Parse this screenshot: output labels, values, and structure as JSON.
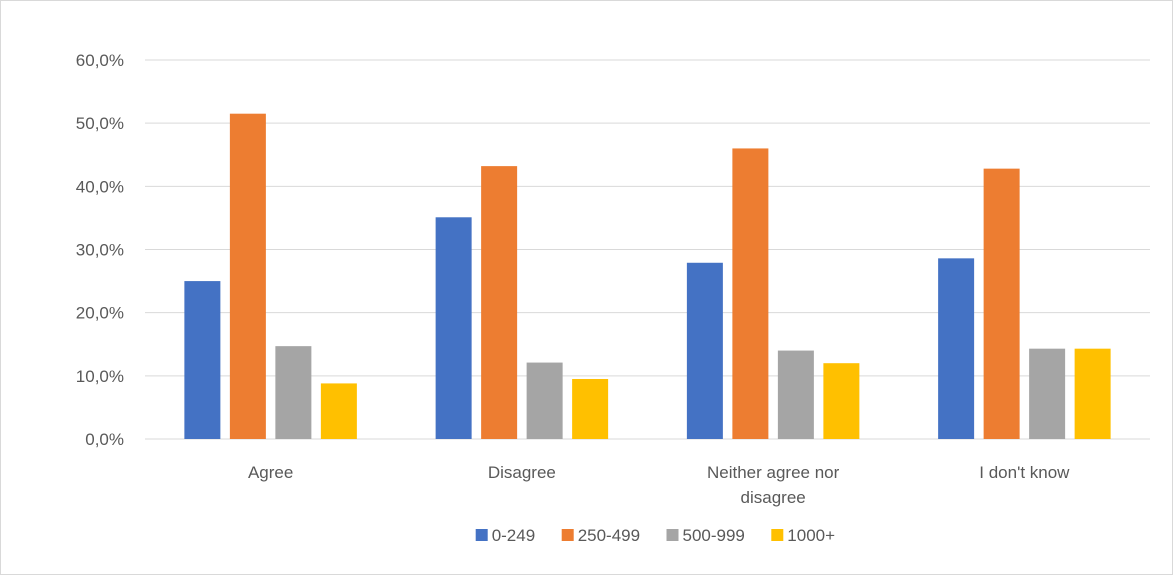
{
  "chart_data": {
    "type": "bar",
    "categories": [
      [
        "Agree"
      ],
      [
        "Disagree"
      ],
      [
        "Neither agree nor",
        "disagree"
      ],
      [
        "I don't know"
      ]
    ],
    "series": [
      {
        "name": "0-249",
        "color": "#4472c4",
        "values": [
          25.0,
          35.1,
          27.9,
          28.6
        ]
      },
      {
        "name": "250-499",
        "color": "#ed7d31",
        "values": [
          51.5,
          43.2,
          46.0,
          42.8
        ]
      },
      {
        "name": "500-999",
        "color": "#a5a5a5",
        "values": [
          14.7,
          12.1,
          14.0,
          14.3
        ]
      },
      {
        "name": "1000+",
        "color": "#ffc000",
        "values": [
          8.8,
          9.5,
          12.0,
          14.3
        ]
      }
    ],
    "yticks": [
      "0,0%",
      "10,0%",
      "20,0%",
      "30,0%",
      "40,0%",
      "50,0%",
      "60,0%"
    ],
    "ylim": [
      0,
      60
    ],
    "legend_position": "bottom",
    "grid": true
  }
}
